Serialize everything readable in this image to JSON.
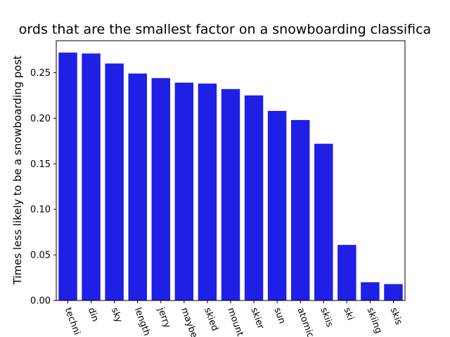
{
  "chart_data": {
    "type": "bar",
    "title": "ords that are the smallest factor on a snowboarding classifica",
    "xlabel": "",
    "ylabel": "Times less likely to be a snowboarding post",
    "categories": [
      "techni",
      "din",
      "sky",
      "length",
      "jerry",
      "maybe",
      "skied",
      "mount",
      "skier",
      "sun",
      "atomic",
      "skiis",
      "ski",
      "skiing",
      "skis"
    ],
    "values": [
      0.272,
      0.271,
      0.26,
      0.249,
      0.244,
      0.239,
      0.238,
      0.232,
      0.225,
      0.208,
      0.198,
      0.172,
      0.061,
      0.02,
      0.018
    ],
    "ylim": [
      0,
      0.285
    ],
    "yticks": [
      "0.00",
      "0.05",
      "0.10",
      "0.15",
      "0.20",
      "0.25"
    ],
    "bar_color": "#1f1fe6",
    "grid": false,
    "legend": "none"
  }
}
